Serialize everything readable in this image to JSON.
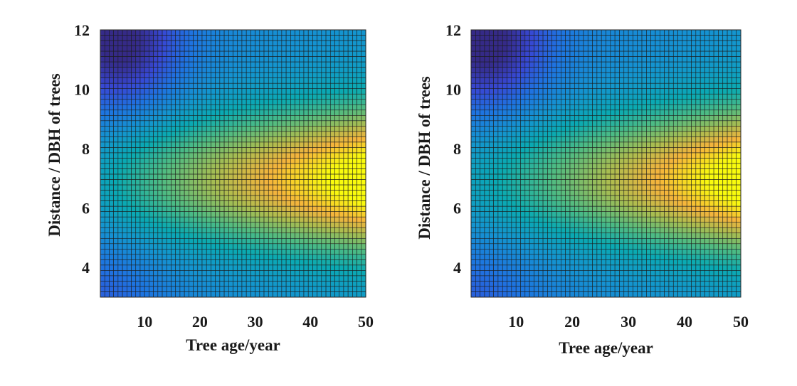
{
  "chart_data": [
    {
      "type": "heatmap",
      "title": "",
      "xlabel": "Tree age/year",
      "ylabel": "Distance / DBH of trees",
      "xlim": [
        2,
        50
      ],
      "ylim": [
        3,
        12
      ],
      "xticks": [
        10,
        20,
        30,
        40,
        50
      ],
      "yticks": [
        4,
        6,
        8,
        10,
        12
      ],
      "grid_cells": {
        "nx": 60,
        "ny": 50
      },
      "colormap": "parula",
      "value_range": [
        0,
        1
      ],
      "surface_features": [
        {
          "kind": "maximum",
          "x": 50,
          "y": 7.0,
          "value": 1.0
        },
        {
          "kind": "minimum",
          "x": 6,
          "y": 11.5,
          "value": 0.0
        }
      ]
    },
    {
      "type": "heatmap",
      "title": "",
      "xlabel": "Tree age/year",
      "ylabel": "Distance / DBH of trees",
      "xlim": [
        2,
        50
      ],
      "ylim": [
        3,
        12
      ],
      "xticks": [
        10,
        20,
        30,
        40,
        50
      ],
      "yticks": [
        4,
        6,
        8,
        10,
        12
      ],
      "grid_cells": {
        "nx": 60,
        "ny": 50
      },
      "colormap": "parula",
      "value_range": [
        0,
        1
      ],
      "surface_features": [
        {
          "kind": "maximum",
          "x": 50,
          "y": 7.0,
          "value": 1.0
        },
        {
          "kind": "minimum",
          "x": 5,
          "y": 11.5,
          "value": 0.0
        }
      ]
    }
  ]
}
